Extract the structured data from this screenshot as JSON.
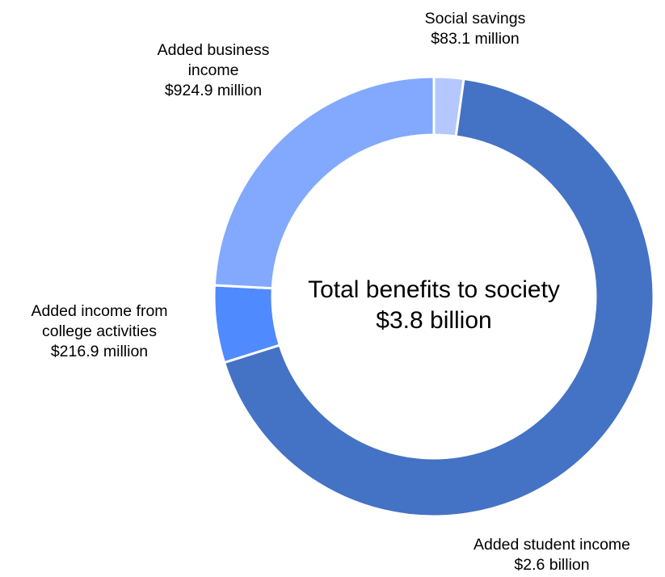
{
  "chart_data": {
    "type": "pie",
    "variant": "donut",
    "center_label": {
      "line1": "Total benefits to society",
      "line2": "$3.8 billion"
    },
    "slices": [
      {
        "label_lines": [
          "Social savings"
        ],
        "value_label": "$83.1 million",
        "value": 83.1,
        "unit": "million",
        "color": "#b4c7ff"
      },
      {
        "label_lines": [
          "Added student income"
        ],
        "value_label": "$2.6 billion",
        "value": 2600,
        "unit": "million",
        "color": "#4472c4"
      },
      {
        "label_lines": [
          "Added income from",
          "college activities"
        ],
        "value_label": "$216.9 million",
        "value": 216.9,
        "unit": "million",
        "color": "#4f8bff"
      },
      {
        "label_lines": [
          "Added business",
          "income"
        ],
        "value_label": "$924.9 million",
        "value": 924.9,
        "unit": "million",
        "color": "#82a9fd"
      }
    ],
    "legend": "none"
  }
}
